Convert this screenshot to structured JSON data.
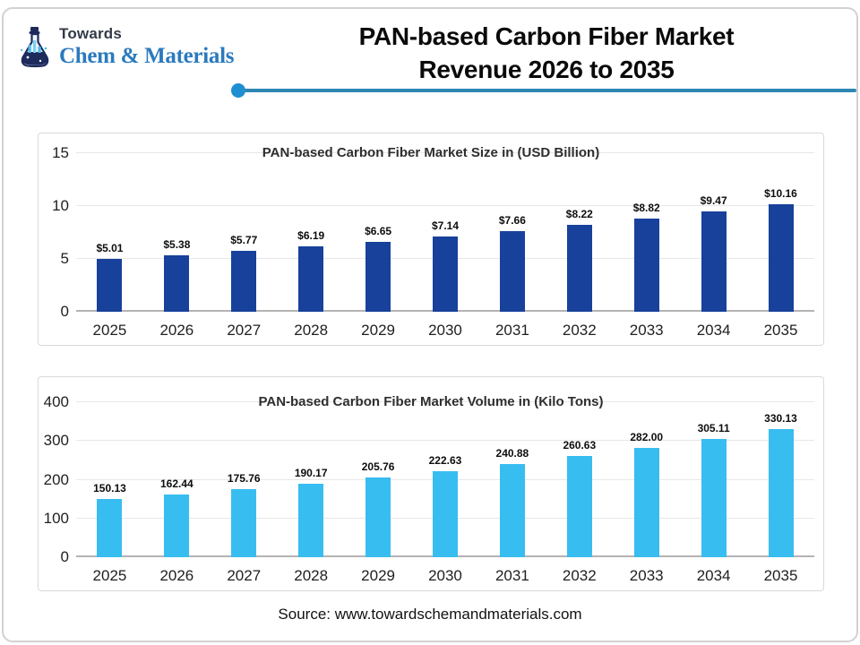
{
  "header": {
    "logo": {
      "word_top": "Towards",
      "word_brand": "Chem & Materials"
    },
    "title_line1": "PAN-based Carbon Fiber Market",
    "title_line2": "Revenue 2026 to 2035"
  },
  "footer": {
    "source": "Source: www.towardschemandmaterials.com"
  },
  "colors": {
    "bar_navy": "#17419B",
    "bar_skyblue": "#38BDF0",
    "divider_line": "#2D87B4",
    "divider_dot": "#1E8FD0",
    "logo_navy": "#1E2A5C",
    "logo_blue": "#2B7ABE",
    "gridline": "#E7E7E7",
    "axis_line": "#B3B3B3"
  },
  "chart_data": [
    {
      "type": "bar",
      "title": "PAN-based Carbon Fiber Market Size in (USD Billion)",
      "categories": [
        "2025",
        "2026",
        "2027",
        "2028",
        "2029",
        "2030",
        "2031",
        "2032",
        "2033",
        "2034",
        "2035"
      ],
      "values": [
        5.01,
        5.38,
        5.77,
        6.19,
        6.65,
        7.14,
        7.66,
        8.22,
        8.82,
        9.47,
        10.16
      ],
      "labels": [
        "$5.01",
        "$5.38",
        "$5.77",
        "$6.19",
        "$6.65",
        "$7.14",
        "$7.66",
        "$8.22",
        "$8.82",
        "$9.47",
        "$10.16"
      ],
      "xlabel": "",
      "ylabel": "",
      "ylim": [
        0,
        15
      ],
      "yticks": [
        0,
        5,
        10,
        15
      ],
      "grid": true,
      "legend": "none",
      "bar_color": "#17419B"
    },
    {
      "type": "bar",
      "title": "PAN-based Carbon Fiber Market Volume in (Kilo Tons)",
      "categories": [
        "2025",
        "2026",
        "2027",
        "2028",
        "2029",
        "2030",
        "2031",
        "2032",
        "2033",
        "2034",
        "2035"
      ],
      "values": [
        150.13,
        162.44,
        175.76,
        190.17,
        205.76,
        222.63,
        240.88,
        260.63,
        282.0,
        305.11,
        330.13
      ],
      "labels": [
        "150.13",
        "162.44",
        "175.76",
        "190.17",
        "205.76",
        "222.63",
        "240.88",
        "260.63",
        "282.00",
        "305.11",
        "330.13"
      ],
      "xlabel": "",
      "ylabel": "",
      "ylim": [
        0,
        400
      ],
      "yticks": [
        0,
        100,
        200,
        300,
        400
      ],
      "grid": true,
      "legend": "none",
      "bar_color": "#38BDF0"
    }
  ]
}
